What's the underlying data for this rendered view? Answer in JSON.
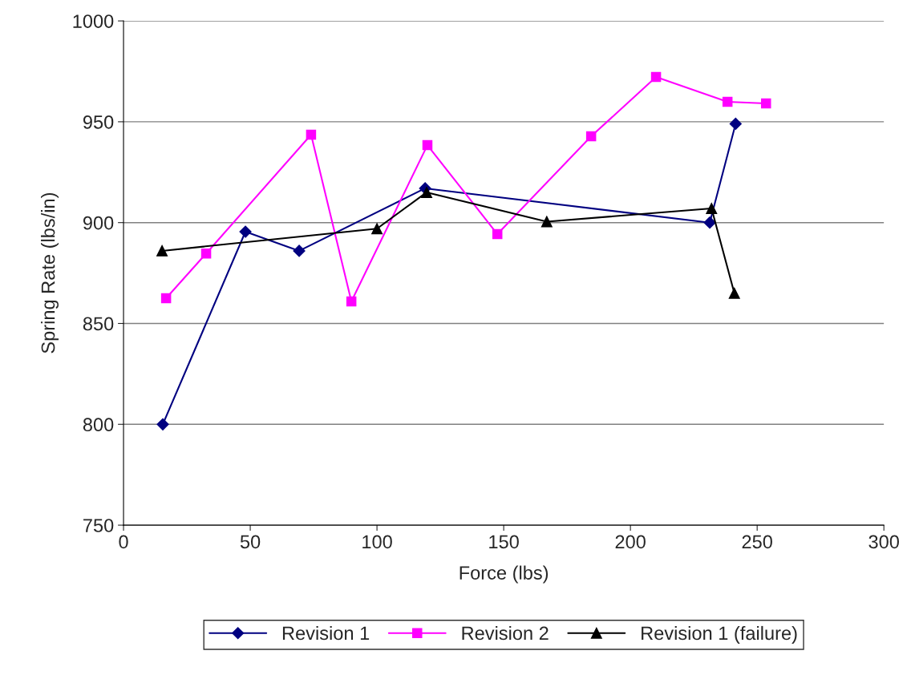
{
  "chart_data": {
    "type": "line",
    "xlabel": "Force (lbs)",
    "ylabel": "Spring Rate (lbs/in)",
    "xlim": [
      0,
      300
    ],
    "xticks": [
      0,
      50,
      100,
      150,
      200,
      250,
      300
    ],
    "ylim": [
      750,
      1000
    ],
    "yticks": [
      750,
      800,
      850,
      900,
      950,
      1000
    ],
    "grid": "y",
    "legend": "bottom",
    "line_style": "solid",
    "series": [
      {
        "name": "Revision 1",
        "color": "#000080",
        "marker": "diamond",
        "x": [
          15.5,
          48.1,
          69.3,
          119,
          231.3,
          241.5
        ],
        "values": [
          800,
          895.5,
          886,
          917,
          900,
          949
        ]
      },
      {
        "name": "Revision 2",
        "color": "#ff00ff",
        "marker": "square",
        "x": [
          16.8,
          32.6,
          74,
          89.9,
          119.9,
          147.5,
          184.5,
          210.1,
          238.3,
          253.5
        ],
        "values": [
          862.5,
          884.7,
          943.6,
          860.9,
          938.4,
          894.3,
          942.8,
          972.2,
          959.9,
          959.1
        ]
      },
      {
        "name": "Revision 1 (failure)",
        "color": "#000000",
        "marker": "triangle",
        "x": [
          15.2,
          100,
          119.6,
          167,
          232,
          241
        ],
        "values": [
          886,
          897,
          915,
          900.5,
          907,
          865
        ]
      }
    ]
  }
}
